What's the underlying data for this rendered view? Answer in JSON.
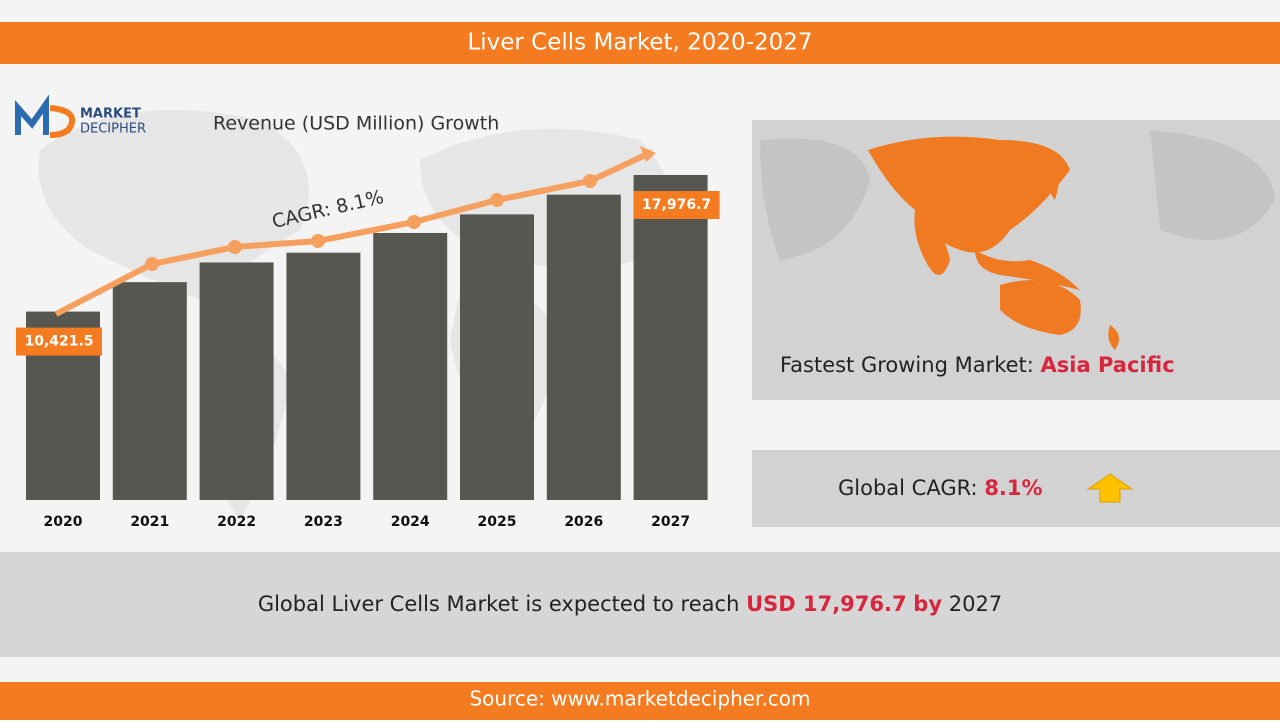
{
  "chart_data": {
    "type": "bar",
    "title": "Liver Cells Market, 2020-2027",
    "subtitle": "Revenue (USD Million) Growth",
    "annotation": "CAGR: 8.1%",
    "categories": [
      "2020",
      "2021",
      "2022",
      "2023",
      "2024",
      "2025",
      "2026",
      "2027"
    ],
    "values": [
      10421.5,
      12050,
      13140,
      13680,
      14770,
      15800,
      16890,
      17976.7
    ],
    "value_labels": [
      "10,421.5",
      null,
      null,
      null,
      null,
      null,
      null,
      "17,976.7"
    ],
    "color": "#575752",
    "label_color": "#f47b20"
  },
  "logo": {
    "line1": "MARKET",
    "line2": "DECIPHER"
  },
  "region_panel": {
    "label": "Fastest Growing Market:",
    "value": "Asia Pacific"
  },
  "cagr_panel": {
    "label": "Global CAGR:",
    "value": "8.1%"
  },
  "summary": {
    "text": "Global Liver Cells Market is expected to reach",
    "value": "USD 17,976.7",
    "by": "by",
    "year": "2027"
  },
  "source": "Source: www.marketdecipher.com"
}
